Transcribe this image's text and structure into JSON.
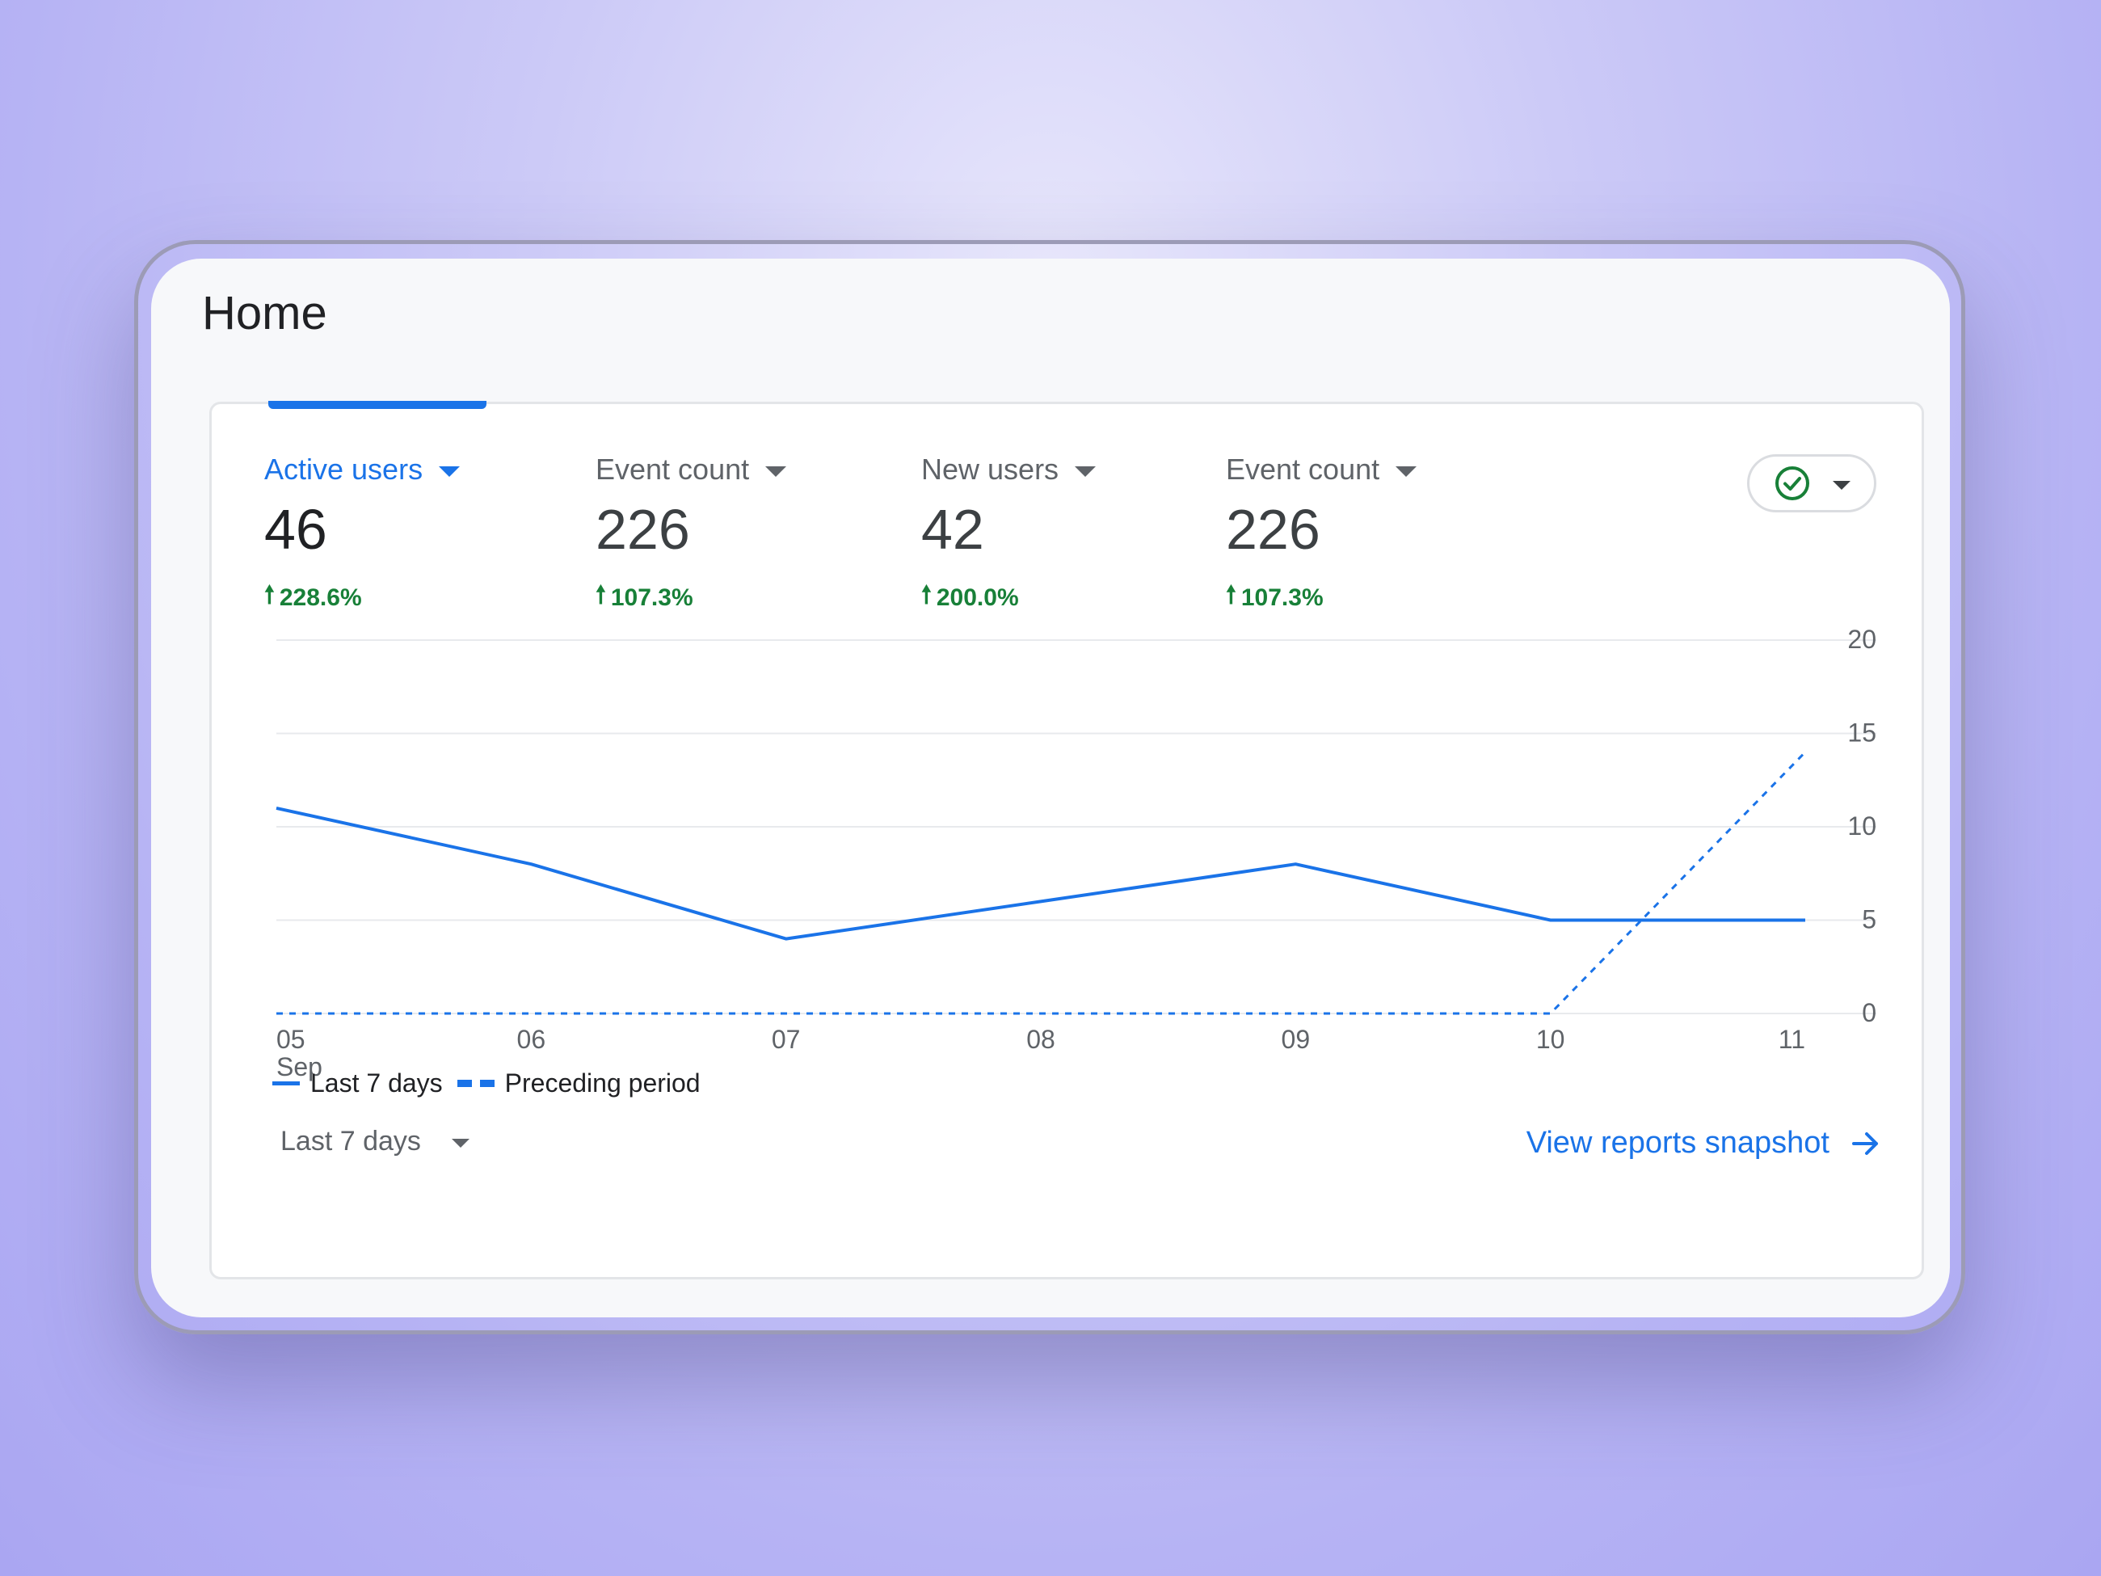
{
  "page": {
    "title": "Home"
  },
  "metrics": [
    {
      "label": "Active users",
      "value": "46",
      "change": "228.6%",
      "active": true
    },
    {
      "label": "Event count",
      "value": "226",
      "change": "107.3%",
      "active": false
    },
    {
      "label": "New users",
      "value": "42",
      "change": "200.0%",
      "active": false
    },
    {
      "label": "Event count",
      "value": "226",
      "change": "107.3%",
      "active": false
    }
  ],
  "status_chip": {
    "icon": "check-circle-icon",
    "color": "#188038"
  },
  "legend": {
    "current": "Last 7 days",
    "previous": "Preceding period"
  },
  "footer": {
    "date_range": "Last 7 days",
    "link_label": "View reports snapshot"
  },
  "colors": {
    "accent": "#1a73e8",
    "positive": "#188038"
  },
  "chart_data": {
    "type": "line",
    "x": [
      "05",
      "06",
      "07",
      "08",
      "09",
      "10",
      "11"
    ],
    "x_sublabel": "Sep",
    "y_ticks": [
      0,
      5,
      10,
      15,
      20
    ],
    "ylim": [
      0,
      20
    ],
    "grid": true,
    "y_axis_position": "right",
    "legend_position": "bottom-left",
    "series": [
      {
        "name": "Last 7 days",
        "style": "solid",
        "values": [
          11,
          8,
          4,
          6,
          8,
          5,
          5
        ]
      },
      {
        "name": "Preceding period",
        "style": "dashed",
        "values": [
          0,
          0,
          0,
          0,
          0,
          0,
          14
        ]
      }
    ]
  }
}
